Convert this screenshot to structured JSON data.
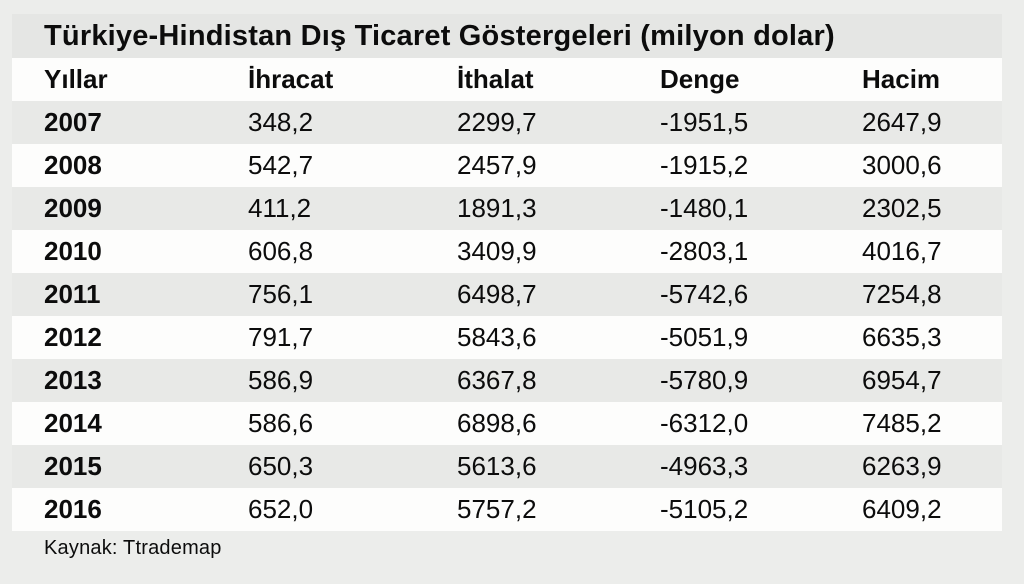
{
  "title": "Türkiye-Hindistan Dış Ticaret Göstergeleri (milyon dolar)",
  "source": "Kaynak:  Ttrademap",
  "table": {
    "headers": [
      "Yıllar",
      "İhracat",
      "İthalat",
      "Denge",
      "Hacim"
    ],
    "rows": [
      [
        "2007",
        "348,2",
        "2299,7",
        "-1951,5",
        "2647,9"
      ],
      [
        "2008",
        "542,7",
        "2457,9",
        "-1915,2",
        "3000,6"
      ],
      [
        "2009",
        "411,2",
        "1891,3",
        "-1480,1",
        "2302,5"
      ],
      [
        "2010",
        "606,8",
        "3409,9",
        "-2803,1",
        "4016,7"
      ],
      [
        "2011",
        "756,1",
        "6498,7",
        "-5742,6",
        "7254,8"
      ],
      [
        "2012",
        "791,7",
        "5843,6",
        "-5051,9",
        "6635,3"
      ],
      [
        "2013",
        "586,9",
        "6367,8",
        "-5780,9",
        "6954,7"
      ],
      [
        "2014",
        "586,6",
        "6898,6",
        "-6312,0",
        "7485,2"
      ],
      [
        "2015",
        "650,3",
        "5613,6",
        "-4963,3",
        "6263,9"
      ],
      [
        "2016",
        "652,0",
        "5757,2",
        "-5105,2",
        "6409,2"
      ]
    ]
  },
  "chart_data": {
    "type": "table",
    "title": "Türkiye-Hindistan Dış Ticaret Göstergeleri (milyon dolar)",
    "columns": [
      "Yıllar",
      "İhracat",
      "İthalat",
      "Denge",
      "Hacim"
    ],
    "rows": [
      [
        "2007",
        348.2,
        2299.7,
        -1951.5,
        2647.9
      ],
      [
        "2008",
        542.7,
        2457.9,
        -1915.2,
        3000.6
      ],
      [
        "2009",
        411.2,
        1891.3,
        -1480.1,
        2302.5
      ],
      [
        "2010",
        606.8,
        3409.9,
        -2803.1,
        4016.7
      ],
      [
        "2011",
        756.1,
        6498.7,
        -5742.6,
        7254.8
      ],
      [
        "2012",
        791.7,
        5843.6,
        -5051.9,
        6635.3
      ],
      [
        "2013",
        586.9,
        6367.8,
        -5780.9,
        6954.7
      ],
      [
        "2014",
        586.6,
        6898.6,
        -6312.0,
        7485.2
      ],
      [
        "2015",
        650.3,
        5613.6,
        -4963.3,
        6263.9
      ],
      [
        "2016",
        652.0,
        5757.2,
        -5105.2,
        6409.2
      ]
    ],
    "units": "milyon dolar",
    "source": "Kaynak: Ttrademap",
    "layout": {
      "striped_rows": true,
      "gray_rows": [
        "2007",
        "2009",
        "2011",
        "2013",
        "2015"
      ],
      "white_rows": [
        "header",
        "2008",
        "2010",
        "2012",
        "2014",
        "2016"
      ]
    }
  },
  "colors": {
    "page_bg": "#ecedeb",
    "title_band": "#e5e6e4",
    "row_white": "#fdfdfc",
    "row_gray": "#e8e9e7",
    "text": "#0c0c0c"
  }
}
